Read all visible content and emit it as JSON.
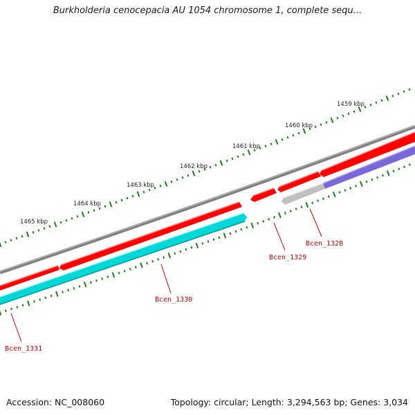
{
  "title": "Burkholderia cenocepacia AU 1054 chromosome 1, complete sequ...",
  "footer": {
    "accession": "Accession: NC_008060",
    "summary": "Topology: circular; Length: 3,294,563 bp; Genes: 3,034"
  },
  "colors": {
    "backbone": "#808080",
    "forward_gene": "#ff0000",
    "reverse_gene": "#00d8d8",
    "purple_gene": "#7b68d8",
    "gray_gene": "#c0c0c0",
    "ticks": "#1f7a1f",
    "gene_labels": "#cc0000"
  },
  "ruler": {
    "unit": "kbp",
    "labels": [
      "1465 kbp",
      "1464 kbp",
      "1463 kbp",
      "1462 kbp",
      "1461 kbp",
      "1460 kbp",
      "1459 kbp"
    ]
  },
  "genes": [
    {
      "label": "Bcen_1328",
      "strand": "reverse",
      "color": "#7b68d8"
    },
    {
      "label": "Bcen_1329",
      "strand": "forward",
      "color": "#ff0000"
    },
    {
      "label": "Bcen_1330",
      "strand": "reverse",
      "color": "#00d8d8"
    },
    {
      "label": "Bcen_1331",
      "strand": "forward",
      "color": "#ff0000"
    }
  ]
}
